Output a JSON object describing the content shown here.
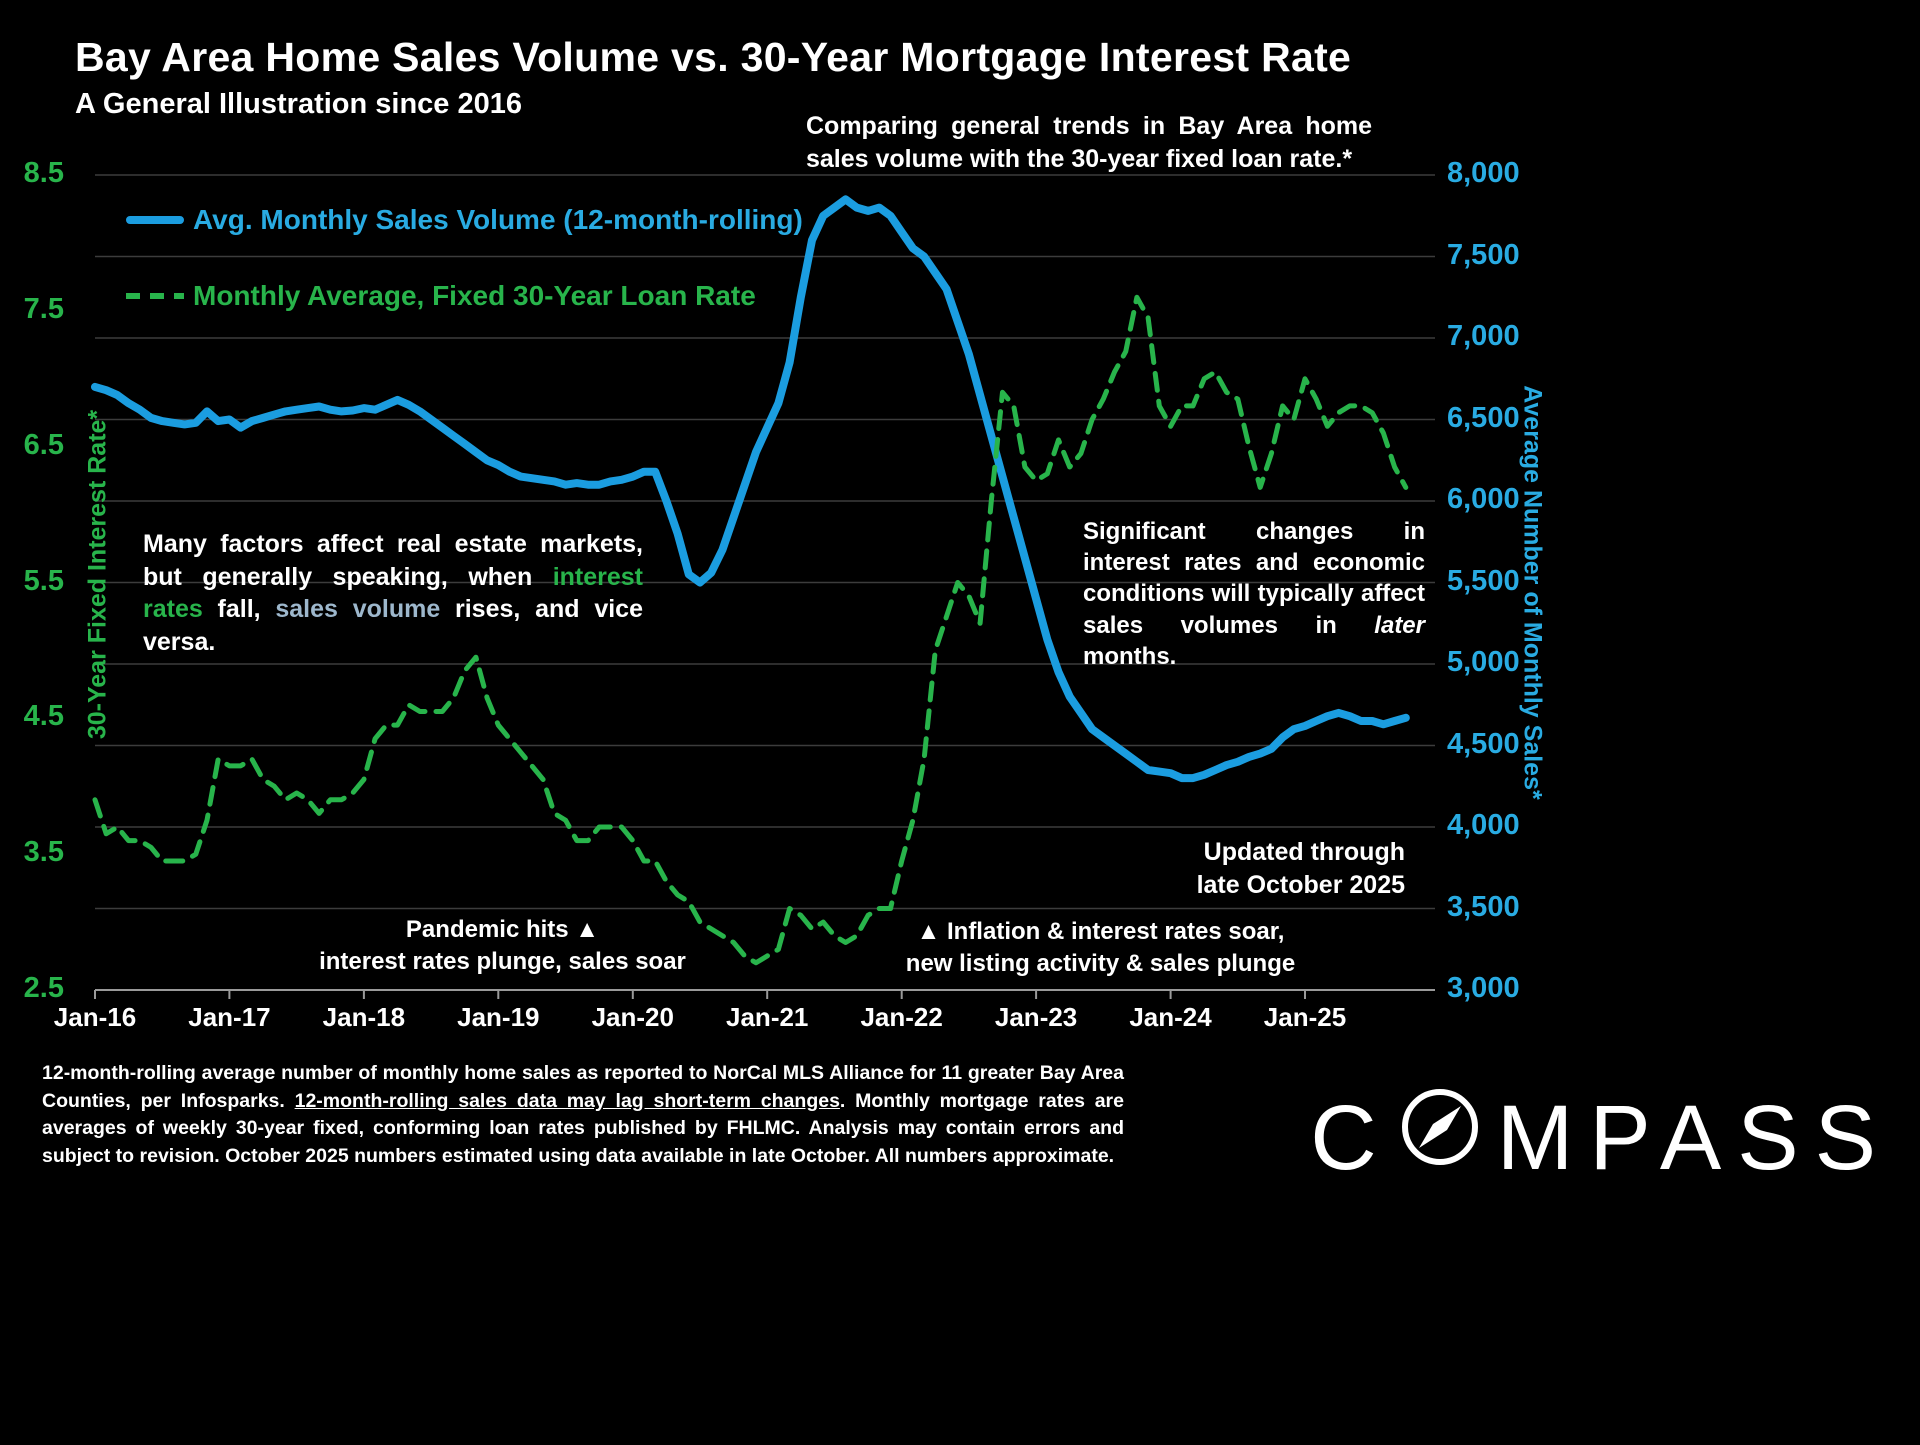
{
  "title": "Bay Area Home Sales Volume vs. 30-Year Mortgage Interest Rate",
  "subtitle": "A General Illustration since 2016",
  "annotations": {
    "comparing": "Comparing general trends in Bay Area home sales volume with the 30-year fixed loan rate.*",
    "many_factors": {
      "p1": "Many factors affect real estate markets, but generally speaking, when ",
      "green": "interest rates",
      "p2": " fall, ",
      "blue": "sales volume",
      "p3": " rises, and vice versa."
    },
    "significant": {
      "p1": "Significant changes in interest rates and economic conditions will typically affect sales volumes in ",
      "italic": "later",
      "p2": " months."
    },
    "updated_line1": "Updated through",
    "updated_line2": "late October 2025",
    "pandemic_line1": "Pandemic hits ▲",
    "pandemic_line2": "interest rates plunge, sales soar",
    "inflation_line1": "▲ Inflation & interest rates soar,",
    "inflation_line2": "new listing activity & sales plunge"
  },
  "footer": {
    "p1": "12-month-rolling average number of monthly home sales as reported to NorCal MLS Alliance for 11 greater Bay Area Counties, per Infosparks. ",
    "underline": "12-month-rolling sales data may lag short-term changes",
    "p2": ". Monthly mortgage rates are averages of weekly 30-year fixed, conforming loan rates published by FHLMC. Analysis may contain errors and subject to revision. October 2025 numbers estimated using data available in late October. All numbers  approximate."
  },
  "logo": {
    "prefix": "C",
    "suffix": "MPASS"
  },
  "colors": {
    "rate_green": "#28b44b",
    "sales_blue": "#1b9de0",
    "blue_label": "#29abe2",
    "grid": "#3c3c3c",
    "axis": "#9a9a9a"
  },
  "chart_data": {
    "type": "line",
    "title": "Bay Area Home Sales Volume vs. 30-Year Mortgage Interest Rate",
    "x_start": "Jan-2016",
    "x_end": "Oct-2025",
    "x_resolution": "monthly",
    "x_tick_labels": [
      "Jan-16",
      "Jan-17",
      "Jan-18",
      "Jan-19",
      "Jan-20",
      "Jan-21",
      "Jan-22",
      "Jan-23",
      "Jan-24",
      "Jan-25"
    ],
    "grid": true,
    "left_axis": {
      "label": "30-Year Fixed Interest Rate*",
      "ticks": [
        "8.5",
        "7.5",
        "6.5",
        "5.5",
        "4.5",
        "3.5",
        "2.5"
      ],
      "range": [
        2.5,
        8.5
      ],
      "color": "#28b44b"
    },
    "right_axis": {
      "label": "Average Number of Monthly Sales*",
      "ticks": [
        "8,000",
        "7,500",
        "7,000",
        "6,500",
        "6,000",
        "5,500",
        "5,000",
        "4,500",
        "4,000",
        "3,500",
        "3,000"
      ],
      "range": [
        3000,
        8000
      ],
      "color": "#29abe2"
    },
    "series": [
      {
        "name": "Avg. Monthly Sales Volume (12-month-rolling)",
        "axis": "right",
        "color": "#1b9de0",
        "style": "solid",
        "values": [
          6700,
          6680,
          6650,
          6600,
          6560,
          6510,
          6490,
          6480,
          6470,
          6480,
          6550,
          6490,
          6500,
          6450,
          6490,
          6510,
          6530,
          6550,
          6560,
          6570,
          6580,
          6560,
          6550,
          6555,
          6570,
          6560,
          6590,
          6620,
          6590,
          6550,
          6500,
          6450,
          6400,
          6350,
          6300,
          6250,
          6220,
          6180,
          6150,
          6140,
          6130,
          6120,
          6100,
          6110,
          6100,
          6100,
          6120,
          6130,
          6150,
          6180,
          6180,
          6000,
          5800,
          5550,
          5500,
          5560,
          5700,
          5900,
          6100,
          6300,
          6450,
          6600,
          6850,
          7250,
          7600,
          7750,
          7800,
          7850,
          7800,
          7780,
          7800,
          7750,
          7650,
          7550,
          7500,
          7400,
          7300,
          7100,
          6900,
          6650,
          6400,
          6150,
          5900,
          5650,
          5400,
          5150,
          4950,
          4800,
          4700,
          4600,
          4550,
          4500,
          4450,
          4400,
          4350,
          4340,
          4330,
          4300,
          4300,
          4320,
          4350,
          4380,
          4400,
          4430,
          4450,
          4480,
          4550,
          4600,
          4620,
          4650,
          4680,
          4700,
          4680,
          4650,
          4650,
          4630,
          4650,
          4670
        ]
      },
      {
        "name": "Monthly Average, Fixed 30-Year Loan Rate",
        "axis": "left",
        "color": "#28b44b",
        "style": "dashed",
        "values": [
          3.9,
          3.65,
          3.7,
          3.6,
          3.6,
          3.55,
          3.45,
          3.45,
          3.45,
          3.5,
          3.75,
          4.2,
          4.15,
          4.15,
          4.2,
          4.05,
          4.0,
          3.9,
          3.95,
          3.9,
          3.8,
          3.9,
          3.9,
          3.95,
          4.05,
          4.35,
          4.45,
          4.45,
          4.6,
          4.55,
          4.55,
          4.55,
          4.65,
          4.85,
          4.95,
          4.65,
          4.45,
          4.35,
          4.25,
          4.15,
          4.05,
          3.8,
          3.75,
          3.6,
          3.6,
          3.7,
          3.7,
          3.7,
          3.6,
          3.45,
          3.45,
          3.3,
          3.2,
          3.15,
          3.0,
          2.95,
          2.9,
          2.85,
          2.75,
          2.7,
          2.75,
          2.8,
          3.1,
          3.05,
          2.95,
          3.0,
          2.9,
          2.85,
          2.9,
          3.05,
          3.1,
          3.1,
          3.45,
          3.75,
          4.2,
          5.0,
          5.25,
          5.5,
          5.4,
          5.2,
          6.1,
          6.9,
          6.8,
          6.35,
          6.25,
          6.3,
          6.55,
          6.35,
          6.45,
          6.7,
          6.85,
          7.05,
          7.2,
          7.6,
          7.45,
          6.8,
          6.65,
          6.8,
          6.8,
          7.0,
          7.05,
          6.9,
          6.85,
          6.5,
          6.2,
          6.45,
          6.8,
          6.7,
          7.0,
          6.85,
          6.65,
          6.75,
          6.8,
          6.8,
          6.75,
          6.6,
          6.35,
          6.2
        ]
      }
    ]
  }
}
